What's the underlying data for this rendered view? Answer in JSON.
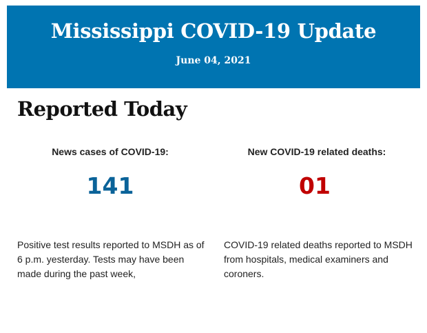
{
  "colors": {
    "banner": "#0074b1",
    "cases": "#0b6399",
    "deaths": "#c00000"
  },
  "header": {
    "title": "Mississippi COVID-19 Update",
    "date": "June 04, 2021"
  },
  "section": {
    "heading": "Reported Today"
  },
  "stats": [
    {
      "label": "News cases of COVID-19:",
      "value": "141",
      "description": "Positive test results reported to MSDH as of 6 p.m. yesterday. Tests may have been made during the past week,"
    },
    {
      "label": "New COVID-19 related deaths:",
      "value": "01",
      "description": "COVID-19 related deaths reported to MSDH from hospitals, medical examiners and coroners."
    }
  ]
}
